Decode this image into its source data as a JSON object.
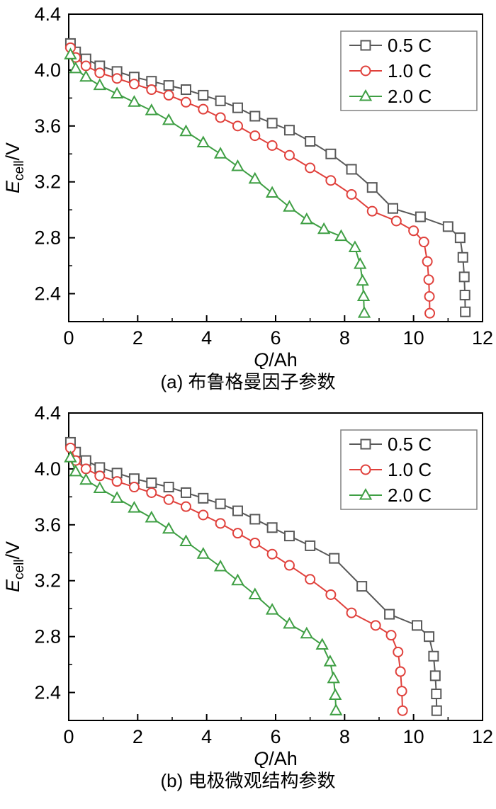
{
  "page": {
    "background": "#ffffff",
    "text_color": "#000000",
    "axis_color": "#000000",
    "legend_border_color": "#808080"
  },
  "chart_data": [
    {
      "type": "line",
      "caption": "(a) 布鲁格曼因子参数",
      "xlabel": {
        "symbol": "Q",
        "suffix": "/Ah"
      },
      "ylabel": {
        "symbol": "E",
        "subscript": "cell",
        "suffix": "/V"
      },
      "xlim": [
        0,
        12
      ],
      "ylim": [
        2.2,
        4.4
      ],
      "xticks": [
        0,
        2,
        4,
        6,
        8,
        10,
        12
      ],
      "xtick_labels": [
        "0",
        "2",
        "4",
        "6",
        "8",
        "10",
        "12"
      ],
      "xminorticks": [
        1,
        3,
        5,
        7,
        9,
        11
      ],
      "yticks": [
        2.4,
        2.8,
        3.2,
        3.6,
        4.0,
        4.4
      ],
      "ytick_labels": [
        "2.4",
        "2.8",
        "3.2",
        "3.6",
        "4.0",
        "4.4"
      ],
      "yminorticks": [
        2.6,
        3.0,
        3.4,
        3.8,
        4.2
      ],
      "grid": false,
      "legend_position": "top-right",
      "series": [
        {
          "name": "0.5 C",
          "marker": "square",
          "color": "#595959",
          "points": [
            [
              0.05,
              4.19
            ],
            [
              0.2,
              4.13
            ],
            [
              0.5,
              4.08
            ],
            [
              0.9,
              4.03
            ],
            [
              1.4,
              3.99
            ],
            [
              1.9,
              3.95
            ],
            [
              2.4,
              3.92
            ],
            [
              2.9,
              3.89
            ],
            [
              3.4,
              3.86
            ],
            [
              3.9,
              3.82
            ],
            [
              4.4,
              3.78
            ],
            [
              4.9,
              3.73
            ],
            [
              5.4,
              3.67
            ],
            [
              5.9,
              3.62
            ],
            [
              6.4,
              3.57
            ],
            [
              7.0,
              3.49
            ],
            [
              7.6,
              3.4
            ],
            [
              8.2,
              3.29
            ],
            [
              8.8,
              3.16
            ],
            [
              9.4,
              3.01
            ],
            [
              10.2,
              2.95
            ],
            [
              11.0,
              2.88
            ],
            [
              11.35,
              2.8
            ],
            [
              11.43,
              2.66
            ],
            [
              11.47,
              2.52
            ],
            [
              11.49,
              2.39
            ],
            [
              11.5,
              2.27
            ]
          ]
        },
        {
          "name": "1.0 C",
          "marker": "circle",
          "color": "#e0413c",
          "points": [
            [
              0.05,
              4.16
            ],
            [
              0.2,
              4.09
            ],
            [
              0.5,
              4.03
            ],
            [
              0.9,
              3.98
            ],
            [
              1.4,
              3.94
            ],
            [
              1.9,
              3.9
            ],
            [
              2.4,
              3.86
            ],
            [
              2.9,
              3.82
            ],
            [
              3.4,
              3.77
            ],
            [
              3.9,
              3.72
            ],
            [
              4.4,
              3.66
            ],
            [
              4.9,
              3.6
            ],
            [
              5.4,
              3.53
            ],
            [
              5.9,
              3.46
            ],
            [
              6.4,
              3.39
            ],
            [
              7.0,
              3.3
            ],
            [
              7.6,
              3.21
            ],
            [
              8.2,
              3.11
            ],
            [
              8.8,
              2.99
            ],
            [
              9.5,
              2.92
            ],
            [
              10.0,
              2.85
            ],
            [
              10.3,
              2.77
            ],
            [
              10.4,
              2.63
            ],
            [
              10.44,
              2.5
            ],
            [
              10.46,
              2.38
            ],
            [
              10.47,
              2.26
            ]
          ]
        },
        {
          "name": "2.0 C",
          "marker": "triangle",
          "color": "#3f9f44",
          "points": [
            [
              0.05,
              4.11
            ],
            [
              0.2,
              4.01
            ],
            [
              0.5,
              3.95
            ],
            [
              0.9,
              3.89
            ],
            [
              1.4,
              3.83
            ],
            [
              1.9,
              3.77
            ],
            [
              2.4,
              3.71
            ],
            [
              2.9,
              3.64
            ],
            [
              3.4,
              3.56
            ],
            [
              3.9,
              3.48
            ],
            [
              4.4,
              3.4
            ],
            [
              4.9,
              3.31
            ],
            [
              5.4,
              3.22
            ],
            [
              5.9,
              3.12
            ],
            [
              6.4,
              3.02
            ],
            [
              6.9,
              2.93
            ],
            [
              7.4,
              2.86
            ],
            [
              7.9,
              2.81
            ],
            [
              8.3,
              2.73
            ],
            [
              8.45,
              2.61
            ],
            [
              8.52,
              2.49
            ],
            [
              8.55,
              2.38
            ],
            [
              8.57,
              2.26
            ]
          ]
        }
      ]
    },
    {
      "type": "line",
      "caption": "(b) 电极微观结构参数",
      "xlabel": {
        "symbol": "Q",
        "suffix": "/Ah"
      },
      "ylabel": {
        "symbol": "E",
        "subscript": "cell",
        "suffix": "/V"
      },
      "xlim": [
        0,
        12
      ],
      "ylim": [
        2.2,
        4.4
      ],
      "xticks": [
        0,
        2,
        4,
        6,
        8,
        10,
        12
      ],
      "xtick_labels": [
        "0",
        "2",
        "4",
        "6",
        "8",
        "10",
        "12"
      ],
      "xminorticks": [
        1,
        3,
        5,
        7,
        9,
        11
      ],
      "yticks": [
        2.4,
        2.8,
        3.2,
        3.6,
        4.0,
        4.4
      ],
      "ytick_labels": [
        "2.4",
        "2.8",
        "3.2",
        "3.6",
        "4.0",
        "4.4"
      ],
      "yminorticks": [
        2.6,
        3.0,
        3.4,
        3.8,
        4.2
      ],
      "grid": false,
      "legend_position": "top-right",
      "series": [
        {
          "name": "0.5 C",
          "marker": "square",
          "color": "#595959",
          "points": [
            [
              0.05,
              4.19
            ],
            [
              0.2,
              4.12
            ],
            [
              0.5,
              4.06
            ],
            [
              0.9,
              4.01
            ],
            [
              1.4,
              3.97
            ],
            [
              1.9,
              3.93
            ],
            [
              2.4,
              3.9
            ],
            [
              2.9,
              3.87
            ],
            [
              3.4,
              3.83
            ],
            [
              3.9,
              3.79
            ],
            [
              4.4,
              3.75
            ],
            [
              4.9,
              3.7
            ],
            [
              5.4,
              3.64
            ],
            [
              5.9,
              3.58
            ],
            [
              6.4,
              3.52
            ],
            [
              7.0,
              3.45
            ],
            [
              7.7,
              3.36
            ],
            [
              8.5,
              3.16
            ],
            [
              9.3,
              2.96
            ],
            [
              10.1,
              2.88
            ],
            [
              10.45,
              2.8
            ],
            [
              10.58,
              2.66
            ],
            [
              10.63,
              2.52
            ],
            [
              10.66,
              2.39
            ],
            [
              10.67,
              2.27
            ]
          ]
        },
        {
          "name": "1.0 C",
          "marker": "circle",
          "color": "#e0413c",
          "points": [
            [
              0.05,
              4.15
            ],
            [
              0.2,
              4.06
            ],
            [
              0.5,
              4.0
            ],
            [
              0.9,
              3.95
            ],
            [
              1.4,
              3.91
            ],
            [
              1.9,
              3.87
            ],
            [
              2.4,
              3.83
            ],
            [
              2.9,
              3.78
            ],
            [
              3.4,
              3.73
            ],
            [
              3.9,
              3.67
            ],
            [
              4.4,
              3.61
            ],
            [
              4.9,
              3.54
            ],
            [
              5.4,
              3.47
            ],
            [
              5.9,
              3.39
            ],
            [
              6.4,
              3.31
            ],
            [
              7.0,
              3.21
            ],
            [
              7.6,
              3.1
            ],
            [
              8.2,
              2.97
            ],
            [
              8.9,
              2.88
            ],
            [
              9.35,
              2.81
            ],
            [
              9.55,
              2.69
            ],
            [
              9.62,
              2.55
            ],
            [
              9.66,
              2.41
            ],
            [
              9.68,
              2.27
            ]
          ]
        },
        {
          "name": "2.0 C",
          "marker": "triangle",
          "color": "#3f9f44",
          "points": [
            [
              0.05,
              4.08
            ],
            [
              0.2,
              3.98
            ],
            [
              0.5,
              3.92
            ],
            [
              0.9,
              3.86
            ],
            [
              1.4,
              3.79
            ],
            [
              1.9,
              3.72
            ],
            [
              2.4,
              3.65
            ],
            [
              2.9,
              3.57
            ],
            [
              3.4,
              3.48
            ],
            [
              3.9,
              3.39
            ],
            [
              4.4,
              3.3
            ],
            [
              4.9,
              3.2
            ],
            [
              5.4,
              3.1
            ],
            [
              5.9,
              2.99
            ],
            [
              6.4,
              2.89
            ],
            [
              6.9,
              2.82
            ],
            [
              7.35,
              2.74
            ],
            [
              7.58,
              2.62
            ],
            [
              7.68,
              2.5
            ],
            [
              7.73,
              2.38
            ],
            [
              7.75,
              2.27
            ]
          ]
        }
      ]
    }
  ]
}
